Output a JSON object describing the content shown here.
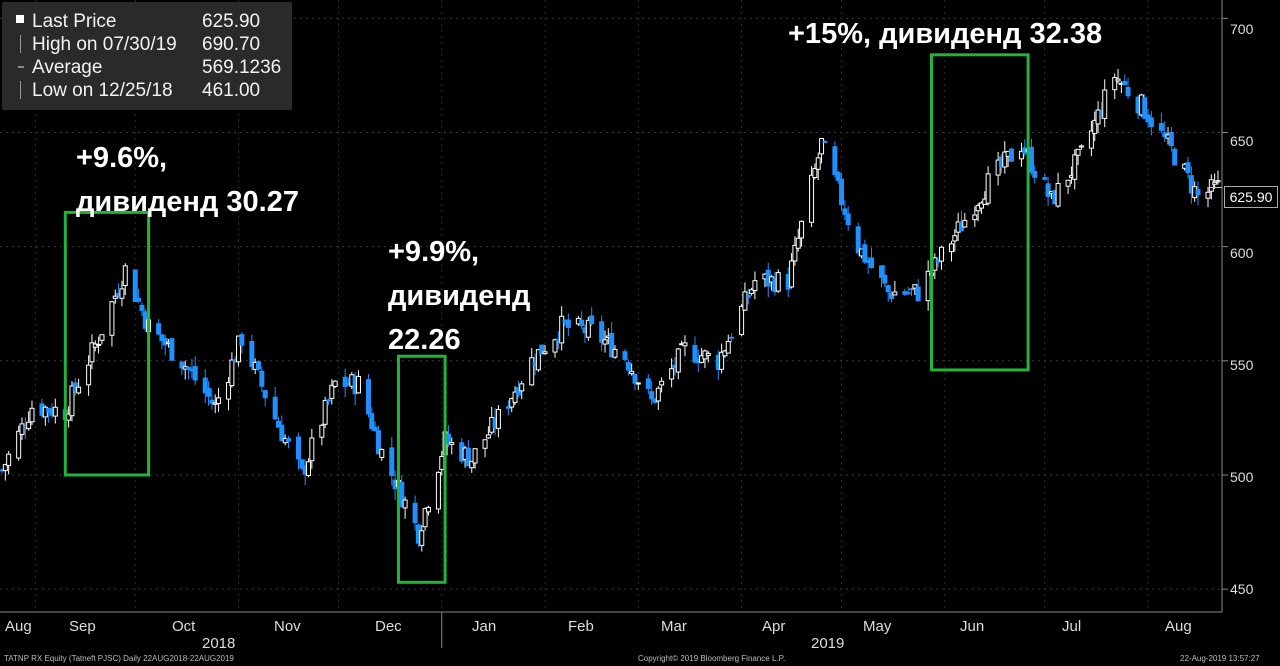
{
  "legend": {
    "last_price_label": "Last Price",
    "last_price_value": "625.90",
    "high_label": "High on 07/30/19",
    "high_value": "690.70",
    "average_label": "Average",
    "average_value": "569.1236",
    "low_label": "Low on 12/25/18",
    "low_value": "461.00"
  },
  "annotations": [
    {
      "lines": [
        "+9.6%,",
        "дивиденд 30.27"
      ]
    },
    {
      "lines": [
        "+9.9%,",
        "дивиденд",
        "22.26"
      ]
    },
    {
      "lines": [
        "+15%, дивиденд 32.38"
      ]
    }
  ],
  "last_price_tag": "625.90",
  "footer": {
    "left": "TATNP RX Equity (Tatneft PJSC)  Daily 22AUG2018-22AUG2019",
    "center": "Copyright© 2019 Bloomberg Finance L.P.",
    "right": "22-Aug-2019 13:57:27"
  },
  "colors": {
    "up": "#ffffff",
    "down": "#1e90ff",
    "box": "#23b33a",
    "axis": "#888888"
  },
  "chart_data": {
    "type": "candlestick",
    "x_label_months": [
      "Aug",
      "Sep",
      "Oct",
      "Nov",
      "Dec",
      "Jan",
      "Feb",
      "Mar",
      "Apr",
      "May",
      "Jun",
      "Jul",
      "Aug"
    ],
    "year_labels": [
      "2018",
      "2019"
    ],
    "y_ticks": [
      450,
      500,
      550,
      600,
      650,
      700
    ],
    "ylim": [
      440,
      708
    ],
    "y_axis_side": "right",
    "series": [
      {
        "date": "2018-08-22",
        "close": 502
      },
      {
        "date": "2018-08-31",
        "close": 530
      },
      {
        "date": "2018-09-10",
        "close": 528
      },
      {
        "date": "2018-09-20",
        "close": 560
      },
      {
        "date": "2018-09-28",
        "close": 590
      },
      {
        "date": "2018-10-05",
        "close": 565
      },
      {
        "date": "2018-10-15",
        "close": 550
      },
      {
        "date": "2018-10-25",
        "close": 530
      },
      {
        "date": "2018-11-02",
        "close": 560
      },
      {
        "date": "2018-11-12",
        "close": 525
      },
      {
        "date": "2018-11-20",
        "close": 500
      },
      {
        "date": "2018-11-30",
        "close": 540
      },
      {
        "date": "2018-12-07",
        "close": 540
      },
      {
        "date": "2018-12-14",
        "close": 510
      },
      {
        "date": "2018-12-25",
        "close": 475
      },
      {
        "date": "2019-01-02",
        "close": 515
      },
      {
        "date": "2019-01-10",
        "close": 507
      },
      {
        "date": "2019-01-18",
        "close": 525
      },
      {
        "date": "2019-01-28",
        "close": 550
      },
      {
        "date": "2019-02-06",
        "close": 565
      },
      {
        "date": "2019-02-15",
        "close": 563
      },
      {
        "date": "2019-02-25",
        "close": 552
      },
      {
        "date": "2019-03-05",
        "close": 532
      },
      {
        "date": "2019-03-15",
        "close": 555
      },
      {
        "date": "2019-03-25",
        "close": 550
      },
      {
        "date": "2019-04-05",
        "close": 585
      },
      {
        "date": "2019-04-15",
        "close": 585
      },
      {
        "date": "2019-04-25",
        "close": 645
      },
      {
        "date": "2019-05-06",
        "close": 600
      },
      {
        "date": "2019-05-15",
        "close": 580
      },
      {
        "date": "2019-05-24",
        "close": 580
      },
      {
        "date": "2019-06-04",
        "close": 605
      },
      {
        "date": "2019-06-14",
        "close": 628
      },
      {
        "date": "2019-06-24",
        "close": 645
      },
      {
        "date": "2019-07-03",
        "close": 620
      },
      {
        "date": "2019-07-12",
        "close": 640
      },
      {
        "date": "2019-07-22",
        "close": 675
      },
      {
        "date": "2019-07-31",
        "close": 660
      },
      {
        "date": "2019-08-09",
        "close": 640
      },
      {
        "date": "2019-08-16",
        "close": 622
      },
      {
        "date": "2019-08-22",
        "close": 625.9
      }
    ],
    "highlight_periods": [
      {
        "start": "2018-09-10",
        "end": "2018-10-05",
        "low": 500,
        "high": 615
      },
      {
        "start": "2018-12-19",
        "end": "2019-01-02",
        "low": 453,
        "high": 552
      },
      {
        "start": "2019-05-28",
        "end": "2019-06-26",
        "low": 546,
        "high": 684
      }
    ]
  }
}
